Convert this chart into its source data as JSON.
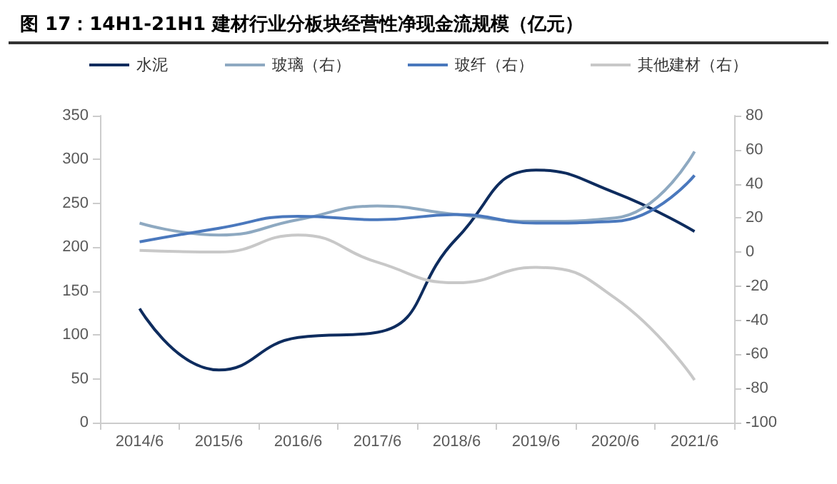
{
  "chart_data": {
    "type": "line",
    "title": "图 17：14H1-21H1 建材行业分板块经营性净现金流规模（亿元）",
    "categories": [
      "2014/6",
      "2015/6",
      "2016/6",
      "2017/6",
      "2018/6",
      "2019/6",
      "2020/6",
      "2021/6"
    ],
    "series": [
      {
        "name": "水泥",
        "color": "#0e2c5e",
        "values": [
          130,
          60,
          97,
          103,
          210,
          288,
          262,
          218
        ]
      },
      {
        "name": "玻璃（右）",
        "color": "#8ea9c1",
        "axis": "y2",
        "values": [
          17,
          10,
          19,
          27,
          22,
          18,
          20,
          59
        ]
      },
      {
        "name": "玻纤（右）",
        "color": "#4a78bd",
        "axis": "y2",
        "values": [
          6,
          14,
          21,
          19,
          22,
          17,
          18,
          45
        ]
      },
      {
        "name": "其他建材（右）",
        "color": "#c8c8c8",
        "axis": "y2",
        "values": [
          1,
          0,
          10,
          -6,
          -18,
          -9,
          -27,
          -75
        ]
      }
    ],
    "ylim": [
      0,
      350
    ],
    "yticks": [
      0,
      50,
      100,
      150,
      200,
      250,
      300,
      350
    ],
    "y2lim": [
      -100,
      80
    ],
    "y2ticks": [
      -100,
      -80,
      -60,
      -40,
      -20,
      0,
      20,
      40,
      60,
      80
    ],
    "grid": false,
    "legend": "top",
    "marker": "none",
    "line_style": "solid"
  }
}
